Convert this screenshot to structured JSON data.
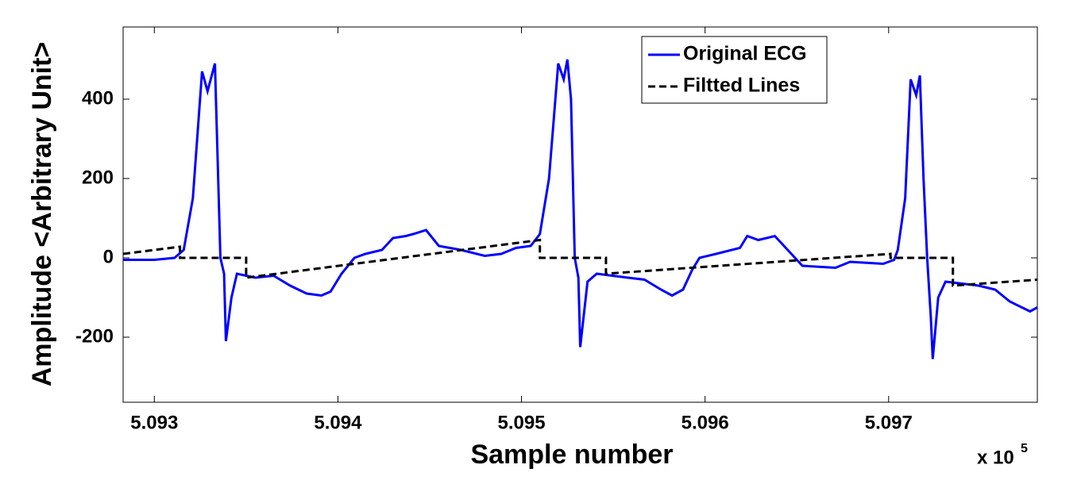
{
  "chart_data": {
    "type": "line",
    "xlabel": "Sample number",
    "ylabel": "Amplitude <Arbitrary Unit>",
    "x_multiplier": "x 10",
    "x_exponent": "5",
    "xlim": [
      509283,
      509781
    ],
    "ylim": [
      -364,
      582
    ],
    "xticks": [
      {
        "value": 509300,
        "label": "5.093"
      },
      {
        "value": 509400,
        "label": "5.094"
      },
      {
        "value": 509500,
        "label": "5.095"
      },
      {
        "value": 509600,
        "label": "5.096"
      },
      {
        "value": 509700,
        "label": "5.097"
      }
    ],
    "yticks": [
      -200,
      0,
      200,
      400
    ],
    "legend": "top-right",
    "series": [
      {
        "name": "Original ECG",
        "color": "#0000ff",
        "line_style": "solid",
        "x": [
          509283,
          509300,
          509311,
          509316,
          509321,
          509326,
          509329,
          509333,
          509336,
          509338,
          509339,
          509342,
          509345,
          509355,
          509365,
          509374,
          509383,
          509391,
          509396,
          509402,
          509409,
          509415,
          509424,
          509430,
          509437,
          509441,
          509448,
          509455,
          509467,
          509480,
          509489,
          509497,
          509505,
          509510,
          509515,
          509520,
          509523,
          509525,
          509527,
          509529,
          509531,
          509532,
          509536,
          509541,
          509558,
          509567,
          509576,
          509582,
          509588,
          509593,
          509597,
          509606,
          509619,
          509623,
          509629,
          509638,
          509645,
          509653,
          509671,
          509679,
          509697,
          509703,
          509705,
          509709,
          509712,
          509715,
          509717,
          509719,
          509721,
          509723,
          509724,
          509727,
          509731,
          509749,
          509758,
          509766,
          509777,
          509781
        ],
        "values": [
          -5,
          -5,
          0,
          20,
          150,
          470,
          420,
          490,
          0,
          -40,
          -210,
          -100,
          -40,
          -50,
          -45,
          -70,
          -90,
          -95,
          -85,
          -40,
          0,
          10,
          20,
          50,
          55,
          60,
          70,
          30,
          20,
          5,
          10,
          25,
          30,
          60,
          200,
          490,
          450,
          500,
          400,
          0,
          -50,
          -225,
          -60,
          -40,
          -50,
          -55,
          -80,
          -95,
          -80,
          -30,
          0,
          10,
          25,
          55,
          45,
          55,
          20,
          -20,
          -25,
          -10,
          -15,
          -5,
          20,
          150,
          450,
          410,
          460,
          200,
          0,
          -150,
          -255,
          -100,
          -60,
          -70,
          -80,
          -110,
          -135,
          -125
        ]
      },
      {
        "name": "Filtted Lines",
        "color": "#000000",
        "line_style": "dashed",
        "x": [
          509283,
          509314,
          509314,
          509350,
          509350,
          509510,
          509510,
          509546,
          509546,
          509701,
          509701,
          509735,
          509735,
          509781
        ],
        "values": [
          10,
          28,
          0,
          0,
          -50,
          45,
          0,
          0,
          -40,
          10,
          0,
          0,
          -70,
          -55
        ]
      }
    ]
  }
}
